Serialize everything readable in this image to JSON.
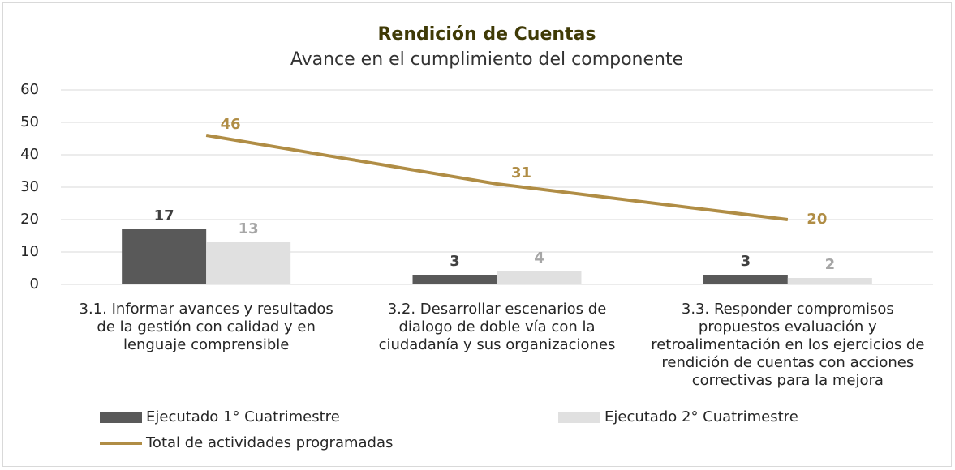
{
  "chart_data": {
    "type": "bar",
    "title": "Rendición de Cuentas",
    "subtitle": "Avance en el cumplimiento del componente",
    "categories": [
      "3.1. Informar avances y resultados de la gestión con calidad y en lenguaje comprensible",
      "3.2. Desarrollar escenarios de dialogo de doble vía con la ciudadanía y sus organizaciones",
      "3.3. Responder compromisos propuestos evaluación y retroalimentación en los ejercicios de rendición de cuentas con acciones correctivas para la mejora"
    ],
    "series": [
      {
        "name": "Ejecutado 1° Cuatrimestre",
        "type": "bar",
        "color": "#595959",
        "label_color": "#404040",
        "values": [
          17,
          3,
          3
        ]
      },
      {
        "name": "Ejecutado 2° Cuatrimestre",
        "type": "bar",
        "color": "#e0e0e0",
        "label_color": "#a6a6a6",
        "values": [
          13,
          4,
          2
        ]
      },
      {
        "name": "Total de actividades programadas",
        "type": "line",
        "color": "#b08d45",
        "label_color": "#b08d45",
        "values": [
          46,
          31,
          20
        ]
      }
    ],
    "ylim": [
      0,
      60
    ],
    "yticks": [
      0,
      10,
      20,
      30,
      40,
      50,
      60
    ],
    "grid": true
  }
}
